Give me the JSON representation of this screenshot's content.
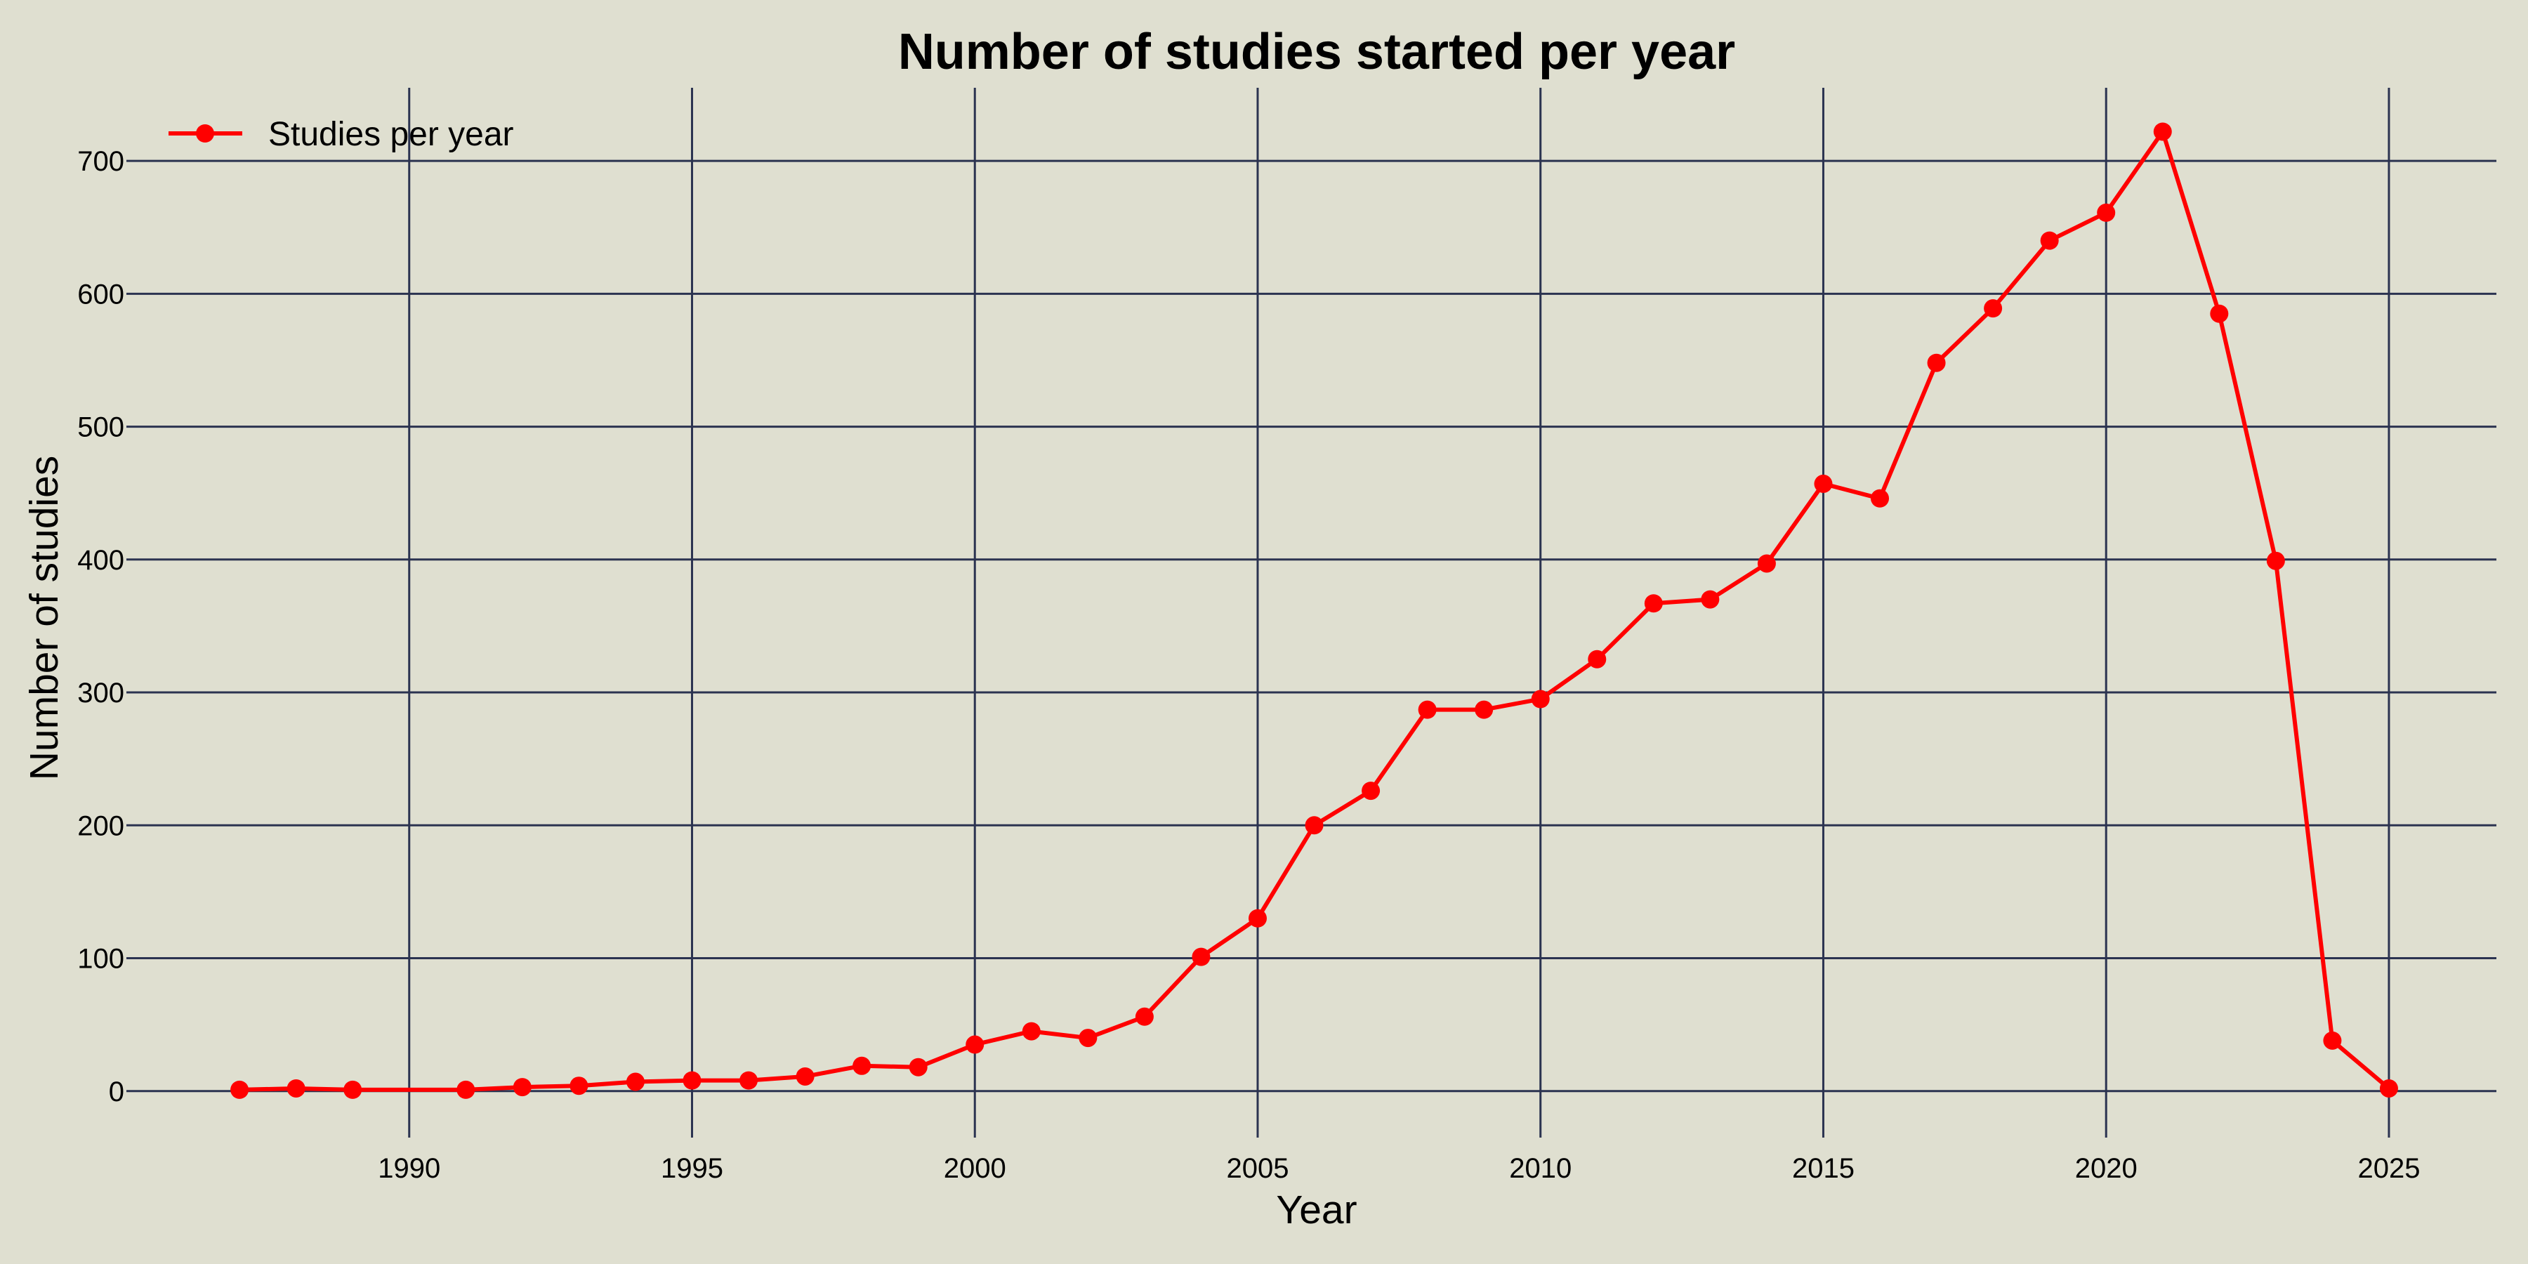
{
  "chart_data": {
    "type": "line",
    "title": "Number of studies started per year",
    "xlabel": "Year",
    "ylabel": "Number of studies",
    "xlim": [
      1985,
      2026.9
    ],
    "ylim": [
      -35,
      755
    ],
    "xticks": [
      1990,
      1995,
      2000,
      2005,
      2010,
      2015,
      2020,
      2025
    ],
    "yticks": [
      0,
      100,
      200,
      300,
      400,
      500,
      600,
      700
    ],
    "grid": true,
    "legend_position": "top-left",
    "series": [
      {
        "name": "Studies per year",
        "color": "#ff0000",
        "marker": "circle",
        "x": [
          1987,
          1988,
          1989,
          1991,
          1992,
          1993,
          1994,
          1995,
          1996,
          1997,
          1998,
          1999,
          2000,
          2001,
          2002,
          2003,
          2004,
          2005,
          2006,
          2007,
          2008,
          2009,
          2010,
          2011,
          2012,
          2013,
          2014,
          2015,
          2016,
          2017,
          2018,
          2019,
          2020,
          2021,
          2022,
          2023,
          2024,
          2025
        ],
        "y": [
          1,
          2,
          1,
          1,
          3,
          4,
          7,
          8,
          8,
          11,
          19,
          18,
          35,
          45,
          40,
          56,
          101,
          130,
          200,
          226,
          287,
          287,
          295,
          325,
          367,
          370,
          397,
          457,
          446,
          548,
          589,
          640,
          661,
          722,
          585,
          399,
          38,
          2
        ]
      }
    ]
  }
}
